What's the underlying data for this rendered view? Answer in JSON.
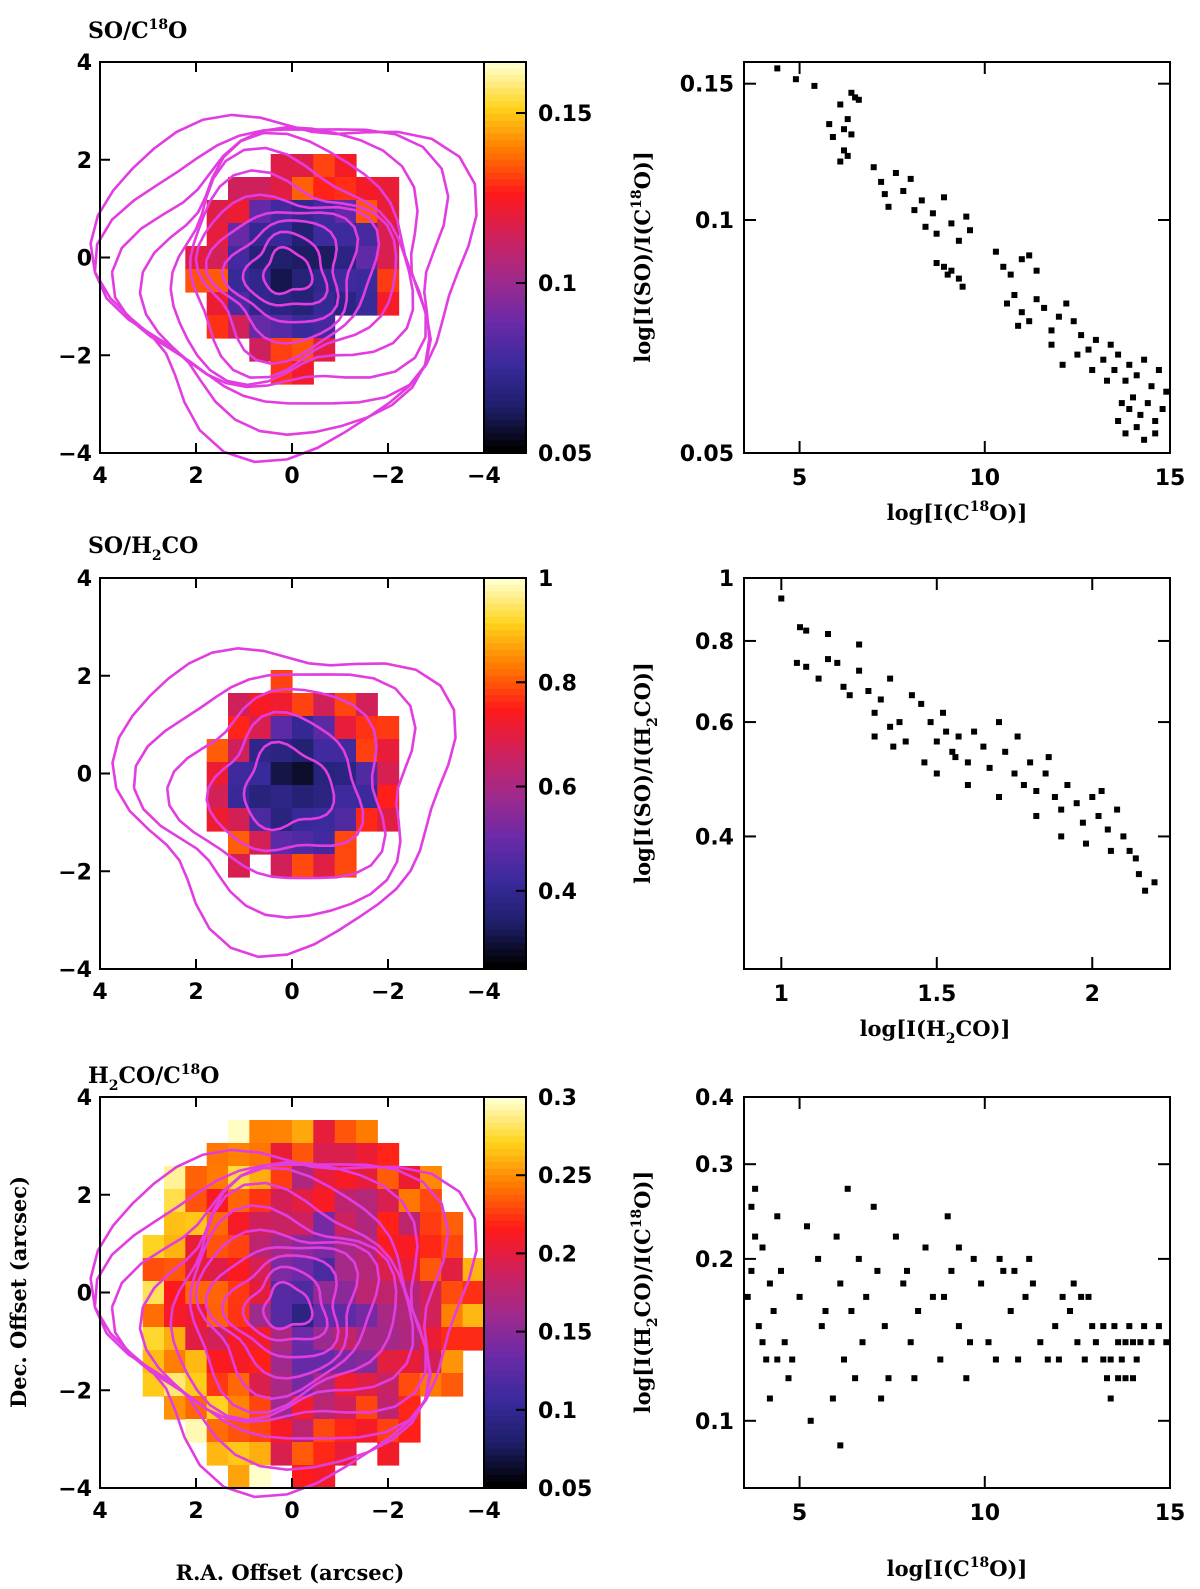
{
  "colors": {
    "contour": "#e23de0",
    "points": "#000000",
    "colormap": [
      "#000000",
      "#1f1f6b",
      "#3a2a9c",
      "#6b2aa8",
      "#a02a8c",
      "#d0205a",
      "#ff1a1a",
      "#ff7a00",
      "#ffd21a",
      "#ffffcc"
    ]
  },
  "chart_data": [
    {
      "type": "heatmap",
      "title": "SO/C18O",
      "title_parts": {
        "pre": "SO/C",
        "sup": "18",
        "post": "O"
      },
      "xlim": [
        4,
        -4
      ],
      "ylim": [
        -4,
        4
      ],
      "xticks": [
        "4",
        "2",
        "0",
        "−2",
        "−4"
      ],
      "yticks": [
        "4",
        "2",
        "0",
        "−2",
        "−4"
      ],
      "xlabel": "",
      "ylabel": "",
      "colorbar": {
        "range": [
          0.05,
          0.165
        ],
        "ticks": [
          "0.15",
          "0.1",
          "0.05"
        ],
        "tick_values": [
          0.15,
          0.1,
          0.05
        ]
      },
      "contour_levels": 11
    },
    {
      "type": "scatter",
      "title": "",
      "xlabel_parts": {
        "pre": "log[I(C",
        "sup": "18",
        "post": "O)]"
      },
      "ylabel_parts": {
        "pre": "log[I(SO)/I(C",
        "sup": "18",
        "post": "O)]"
      },
      "xlim": [
        3.5,
        15
      ],
      "ylim": [
        0.05,
        0.16
      ],
      "yscale": "log",
      "xticks": [
        "5",
        "10",
        "15"
      ],
      "xtick_values": [
        5,
        10,
        15
      ],
      "yticks": [
        "0.15",
        "0.1",
        "0.05"
      ],
      "ytick_values": [
        0.15,
        0.1,
        0.05
      ],
      "points": [
        [
          4.4,
          0.157
        ],
        [
          4.9,
          0.152
        ],
        [
          5.4,
          0.149
        ],
        [
          5.8,
          0.133
        ],
        [
          5.9,
          0.128
        ],
        [
          6.1,
          0.141
        ],
        [
          6.2,
          0.123
        ],
        [
          6.3,
          0.135
        ],
        [
          6.4,
          0.146
        ],
        [
          6.5,
          0.144
        ],
        [
          6.2,
          0.131
        ],
        [
          6.4,
          0.129
        ],
        [
          6.3,
          0.121
        ],
        [
          6.1,
          0.119
        ],
        [
          6.6,
          0.143
        ],
        [
          7.0,
          0.117
        ],
        [
          7.2,
          0.112
        ],
        [
          7.3,
          0.108
        ],
        [
          7.4,
          0.104
        ],
        [
          7.6,
          0.115
        ],
        [
          7.8,
          0.109
        ],
        [
          8.0,
          0.113
        ],
        [
          8.1,
          0.103
        ],
        [
          8.3,
          0.106
        ],
        [
          8.4,
          0.098
        ],
        [
          8.6,
          0.102
        ],
        [
          8.7,
          0.096
        ],
        [
          8.9,
          0.107
        ],
        [
          9.1,
          0.099
        ],
        [
          9.3,
          0.094
        ],
        [
          9.5,
          0.101
        ],
        [
          9.6,
          0.097
        ],
        [
          8.7,
          0.088
        ],
        [
          8.9,
          0.087
        ],
        [
          9.1,
          0.086
        ],
        [
          9.3,
          0.084
        ],
        [
          9.4,
          0.082
        ],
        [
          9.0,
          0.085
        ],
        [
          10.3,
          0.091
        ],
        [
          10.5,
          0.087
        ],
        [
          10.7,
          0.085
        ],
        [
          11.0,
          0.089
        ],
        [
          11.2,
          0.09
        ],
        [
          11.4,
          0.086
        ],
        [
          10.6,
          0.078
        ],
        [
          10.8,
          0.08
        ],
        [
          11.0,
          0.076
        ],
        [
          11.2,
          0.074
        ],
        [
          11.4,
          0.079
        ],
        [
          11.6,
          0.077
        ],
        [
          11.8,
          0.072
        ],
        [
          12.0,
          0.075
        ],
        [
          12.2,
          0.078
        ],
        [
          12.4,
          0.074
        ],
        [
          12.6,
          0.071
        ],
        [
          12.8,
          0.068
        ],
        [
          13.0,
          0.07
        ],
        [
          13.2,
          0.066
        ],
        [
          13.4,
          0.069
        ],
        [
          13.5,
          0.064
        ],
        [
          13.6,
          0.067
        ],
        [
          13.8,
          0.062
        ],
        [
          13.9,
          0.065
        ],
        [
          14.1,
          0.063
        ],
        [
          14.3,
          0.066
        ],
        [
          14.5,
          0.061
        ],
        [
          14.7,
          0.064
        ],
        [
          14.9,
          0.06
        ],
        [
          13.7,
          0.058
        ],
        [
          13.9,
          0.057
        ],
        [
          14.0,
          0.059
        ],
        [
          14.2,
          0.056
        ],
        [
          14.4,
          0.058
        ],
        [
          14.6,
          0.055
        ],
        [
          14.8,
          0.057
        ],
        [
          13.6,
          0.055
        ],
        [
          13.8,
          0.053
        ],
        [
          14.1,
          0.054
        ],
        [
          14.3,
          0.052
        ],
        [
          14.6,
          0.053
        ],
        [
          12.9,
          0.064
        ],
        [
          13.3,
          0.062
        ],
        [
          12.5,
          0.067
        ],
        [
          11.8,
          0.069
        ],
        [
          10.9,
          0.073
        ],
        [
          12.1,
          0.065
        ]
      ]
    },
    {
      "type": "heatmap",
      "title": "SO/H2CO",
      "title_parts": {
        "pre": "SO/H",
        "sub": "2",
        "post": "CO"
      },
      "xlim": [
        4,
        -4
      ],
      "ylim": [
        -4,
        4
      ],
      "xticks": [
        "4",
        "2",
        "0",
        "−2",
        "−4"
      ],
      "yticks": [
        "4",
        "2",
        "0",
        "−2",
        "−4"
      ],
      "xlabel": "",
      "ylabel": "",
      "colorbar": {
        "range": [
          0.25,
          1.0
        ],
        "ticks": [
          "1",
          "0.8",
          "0.6",
          "0.4"
        ],
        "tick_values": [
          1.0,
          0.8,
          0.6,
          0.4
        ]
      },
      "contour_levels": 5
    },
    {
      "type": "scatter",
      "title": "",
      "xlabel_parts": {
        "pre": "log[I(H",
        "sub": "2",
        "post": "CO)]"
      },
      "ylabel_parts": {
        "pre": "log[I(SO)/I(H",
        "sub": "2",
        "post": "CO)]"
      },
      "xlim": [
        0.88,
        2.25
      ],
      "ylim": [
        0.25,
        1.0
      ],
      "yscale": "log",
      "xticks": [
        "1",
        "1.5",
        "2"
      ],
      "xtick_values": [
        1.0,
        1.5,
        2.0
      ],
      "yticks": [
        "1",
        "0.8",
        "0.6",
        "0.4"
      ],
      "ytick_values": [
        1.0,
        0.8,
        0.6,
        0.4
      ],
      "points": [
        [
          1.0,
          0.93
        ],
        [
          1.06,
          0.84
        ],
        [
          1.08,
          0.83
        ],
        [
          1.05,
          0.74
        ],
        [
          1.08,
          0.73
        ],
        [
          1.12,
          0.7
        ],
        [
          1.15,
          0.82
        ],
        [
          1.15,
          0.75
        ],
        [
          1.18,
          0.74
        ],
        [
          1.2,
          0.68
        ],
        [
          1.22,
          0.66
        ],
        [
          1.25,
          0.79
        ],
        [
          1.25,
          0.72
        ],
        [
          1.28,
          0.67
        ],
        [
          1.3,
          0.62
        ],
        [
          1.32,
          0.65
        ],
        [
          1.35,
          0.7
        ],
        [
          1.35,
          0.59
        ],
        [
          1.38,
          0.6
        ],
        [
          1.4,
          0.56
        ],
        [
          1.42,
          0.66
        ],
        [
          1.45,
          0.64
        ],
        [
          1.48,
          0.6
        ],
        [
          1.5,
          0.56
        ],
        [
          1.52,
          0.62
        ],
        [
          1.53,
          0.58
        ],
        [
          1.55,
          0.54
        ],
        [
          1.57,
          0.57
        ],
        [
          1.6,
          0.52
        ],
        [
          1.62,
          0.58
        ],
        [
          1.65,
          0.55
        ],
        [
          1.67,
          0.51
        ],
        [
          1.7,
          0.6
        ],
        [
          1.72,
          0.54
        ],
        [
          1.75,
          0.5
        ],
        [
          1.78,
          0.48
        ],
        [
          1.8,
          0.52
        ],
        [
          1.82,
          0.47
        ],
        [
          1.85,
          0.5
        ],
        [
          1.88,
          0.46
        ],
        [
          1.9,
          0.44
        ],
        [
          1.92,
          0.48
        ],
        [
          1.95,
          0.45
        ],
        [
          1.97,
          0.42
        ],
        [
          2.0,
          0.46
        ],
        [
          2.02,
          0.43
        ],
        [
          2.05,
          0.41
        ],
        [
          2.08,
          0.44
        ],
        [
          2.1,
          0.4
        ],
        [
          2.12,
          0.38
        ],
        [
          2.15,
          0.35
        ],
        [
          2.17,
          0.33
        ],
        [
          2.2,
          0.34
        ],
        [
          2.14,
          0.37
        ],
        [
          1.98,
          0.39
        ],
        [
          1.9,
          0.4
        ],
        [
          1.82,
          0.43
        ],
        [
          1.7,
          0.46
        ],
        [
          1.6,
          0.48
        ],
        [
          1.5,
          0.5
        ],
        [
          1.46,
          0.52
        ],
        [
          1.36,
          0.55
        ],
        [
          1.3,
          0.57
        ],
        [
          1.56,
          0.53
        ],
        [
          1.76,
          0.57
        ],
        [
          1.86,
          0.53
        ],
        [
          2.06,
          0.38
        ],
        [
          2.03,
          0.47
        ]
      ]
    },
    {
      "type": "heatmap",
      "title": "H2CO/C18O",
      "title_parts": {
        "pre": "H",
        "sub": "2",
        "mid": "CO/C",
        "sup": "18",
        "post": "O"
      },
      "xlim": [
        4,
        -4
      ],
      "ylim": [
        -4,
        4
      ],
      "xticks": [
        "4",
        "2",
        "0",
        "−2",
        "−4"
      ],
      "yticks": [
        "4",
        "2",
        "0",
        "−2",
        "−4"
      ],
      "xlabel": "R.A. Offset (arcsec)",
      "ylabel": "Dec. Offset (arcsec)",
      "colorbar": {
        "range": [
          0.05,
          0.3
        ],
        "ticks": [
          "0.3",
          "0.25",
          "0.2",
          "0.15",
          "0.1",
          "0.05"
        ],
        "tick_values": [
          0.3,
          0.25,
          0.2,
          0.15,
          0.1,
          0.05
        ]
      },
      "contour_levels": 11
    },
    {
      "type": "scatter",
      "title": "",
      "xlabel_parts": {
        "pre": "log[I(C",
        "sup": "18",
        "post": "O)]"
      },
      "ylabel_parts": {
        "pre": "log[I(H",
        "sub": "2",
        "mid": "CO)/I(C",
        "sup": "18",
        "post": "O)]"
      },
      "xlim": [
        3.5,
        15
      ],
      "ylim": [
        0.075,
        0.4
      ],
      "yscale": "log",
      "xticks": [
        "5",
        "10",
        "15"
      ],
      "xtick_values": [
        5,
        10,
        15
      ],
      "yticks": [
        "0.4",
        "0.3",
        "0.2",
        "0.1"
      ],
      "ytick_values": [
        0.4,
        0.3,
        0.2,
        0.1
      ],
      "points": [
        [
          3.6,
          0.17
        ],
        [
          3.7,
          0.25
        ],
        [
          3.8,
          0.22
        ],
        [
          3.9,
          0.15
        ],
        [
          4.0,
          0.21
        ],
        [
          4.1,
          0.13
        ],
        [
          4.2,
          0.18
        ],
        [
          4.3,
          0.16
        ],
        [
          4.4,
          0.24
        ],
        [
          4.5,
          0.19
        ],
        [
          4.6,
          0.14
        ],
        [
          4.7,
          0.12
        ],
        [
          3.8,
          0.27
        ],
        [
          4.2,
          0.11
        ],
        [
          4.4,
          0.13
        ],
        [
          5.0,
          0.17
        ],
        [
          5.2,
          0.23
        ],
        [
          5.3,
          0.1
        ],
        [
          5.5,
          0.2
        ],
        [
          5.7,
          0.16
        ],
        [
          6.0,
          0.22
        ],
        [
          6.1,
          0.18
        ],
        [
          6.2,
          0.13
        ],
        [
          6.3,
          0.27
        ],
        [
          6.4,
          0.16
        ],
        [
          6.5,
          0.12
        ],
        [
          6.1,
          0.09
        ],
        [
          5.9,
          0.11
        ],
        [
          6.6,
          0.2
        ],
        [
          6.8,
          0.17
        ],
        [
          7.0,
          0.25
        ],
        [
          7.1,
          0.19
        ],
        [
          7.3,
          0.15
        ],
        [
          7.4,
          0.12
        ],
        [
          7.6,
          0.22
        ],
        [
          7.8,
          0.18
        ],
        [
          8.0,
          0.14
        ],
        [
          8.2,
          0.16
        ],
        [
          8.4,
          0.21
        ],
        [
          8.6,
          0.17
        ],
        [
          8.8,
          0.13
        ],
        [
          9.0,
          0.24
        ],
        [
          9.1,
          0.19
        ],
        [
          9.3,
          0.15
        ],
        [
          9.5,
          0.12
        ],
        [
          9.7,
          0.2
        ],
        [
          9.9,
          0.18
        ],
        [
          10.1,
          0.14
        ],
        [
          10.3,
          0.13
        ],
        [
          10.5,
          0.19
        ],
        [
          10.7,
          0.16
        ],
        [
          10.9,
          0.13
        ],
        [
          11.1,
          0.17
        ],
        [
          11.3,
          0.18
        ],
        [
          11.5,
          0.14
        ],
        [
          11.7,
          0.13
        ],
        [
          11.9,
          0.15
        ],
        [
          12.1,
          0.17
        ],
        [
          12.3,
          0.16
        ],
        [
          12.5,
          0.14
        ],
        [
          12.7,
          0.13
        ],
        [
          12.9,
          0.15
        ],
        [
          13.0,
          0.14
        ],
        [
          13.2,
          0.13
        ],
        [
          13.3,
          0.12
        ],
        [
          13.4,
          0.11
        ],
        [
          13.5,
          0.15
        ],
        [
          13.6,
          0.14
        ],
        [
          13.7,
          0.13
        ],
        [
          13.8,
          0.12
        ],
        [
          13.9,
          0.15
        ],
        [
          14.0,
          0.14
        ],
        [
          14.1,
          0.13
        ],
        [
          14.2,
          0.14
        ],
        [
          14.3,
          0.15
        ],
        [
          14.5,
          0.14
        ],
        [
          14.7,
          0.15
        ],
        [
          14.9,
          0.14
        ],
        [
          13.4,
          0.13
        ],
        [
          13.6,
          0.12
        ],
        [
          13.8,
          0.14
        ],
        [
          14.0,
          0.12
        ],
        [
          13.2,
          0.15
        ],
        [
          12.8,
          0.17
        ],
        [
          12.4,
          0.18
        ],
        [
          12.0,
          0.13
        ],
        [
          11.2,
          0.2
        ],
        [
          10.4,
          0.2
        ],
        [
          9.6,
          0.14
        ],
        [
          8.9,
          0.17
        ],
        [
          8.1,
          0.12
        ],
        [
          7.2,
          0.11
        ],
        [
          6.7,
          0.14
        ],
        [
          5.6,
          0.15
        ],
        [
          4.8,
          0.13
        ],
        [
          4.0,
          0.14
        ],
        [
          3.7,
          0.19
        ],
        [
          7.9,
          0.19
        ],
        [
          9.3,
          0.21
        ],
        [
          10.8,
          0.19
        ],
        [
          12.6,
          0.17
        ]
      ]
    }
  ]
}
